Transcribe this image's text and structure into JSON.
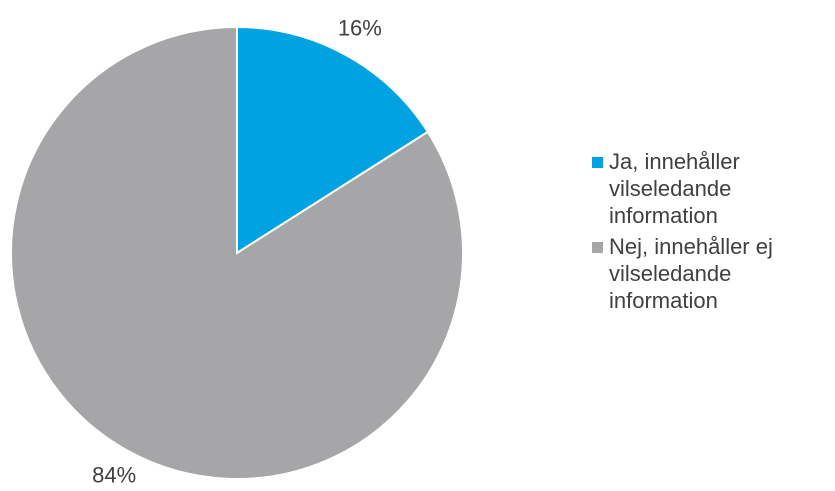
{
  "chart_data": {
    "type": "pie",
    "categories": [
      "Ja, innehåller vilseledande information",
      "Nej, innehåller ej vilseledande information"
    ],
    "values": [
      16,
      84
    ],
    "value_labels": [
      "16%",
      "84%"
    ],
    "colors": [
      "#00a2e1",
      "#a6a6a8"
    ],
    "legend": "right"
  }
}
